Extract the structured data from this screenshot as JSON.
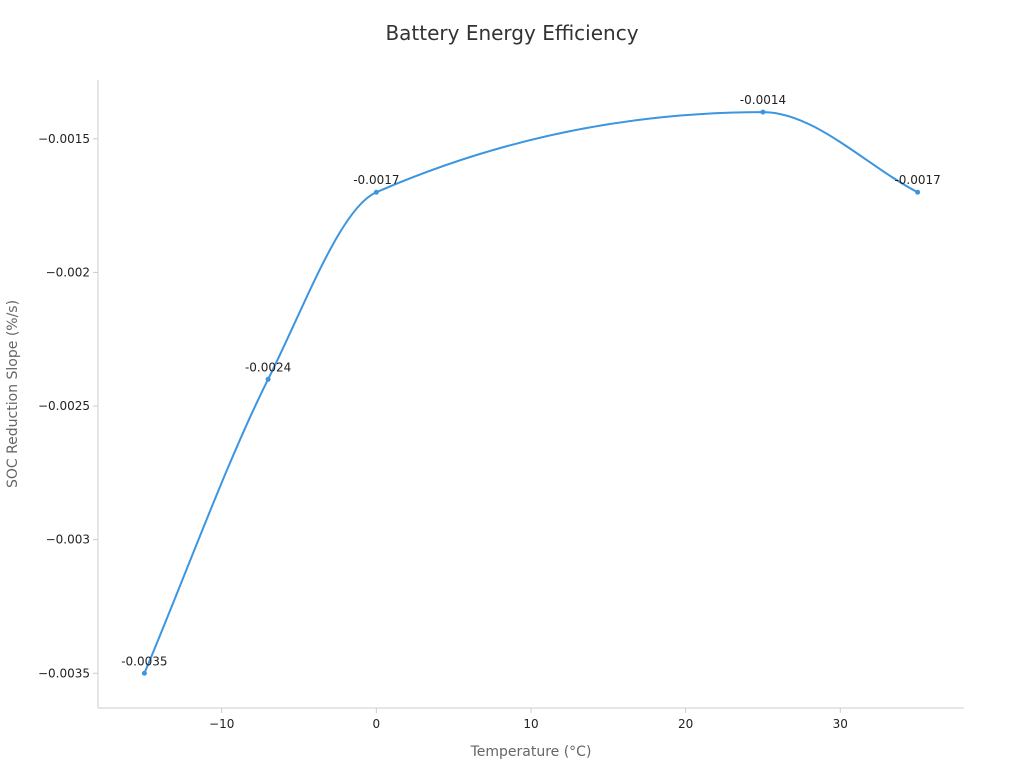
{
  "chart_data": {
    "type": "line",
    "title": "Battery Energy Efficiency",
    "xlabel": "Temperature (°C)",
    "ylabel": "SOC Reduction Slope (%/s)",
    "x": [
      -15,
      -7,
      0,
      25,
      35
    ],
    "series": [
      {
        "values": [
          -0.0035,
          -0.0024,
          -0.0017,
          -0.0014,
          -0.0017
        ],
        "data_labels": [
          "-0.0035",
          "-0.0024",
          "-0.0017",
          "-0.0014",
          "-0.0017"
        ],
        "color": "#3b95e0"
      }
    ],
    "xlim": [
      -18,
      38
    ],
    "ylim": [
      -0.00363,
      -0.00128
    ],
    "xticks": [
      -10,
      0,
      10,
      20,
      30
    ],
    "xtick_labels": [
      "−10",
      "0",
      "10",
      "20",
      "30"
    ],
    "yticks": [
      -0.0015,
      -0.002,
      -0.0025,
      -0.003,
      -0.0035
    ],
    "ytick_labels": [
      "−0.0015",
      "−0.002",
      "−0.0025",
      "−0.003",
      "−0.0035"
    ],
    "grid": false,
    "smooth": true
  }
}
